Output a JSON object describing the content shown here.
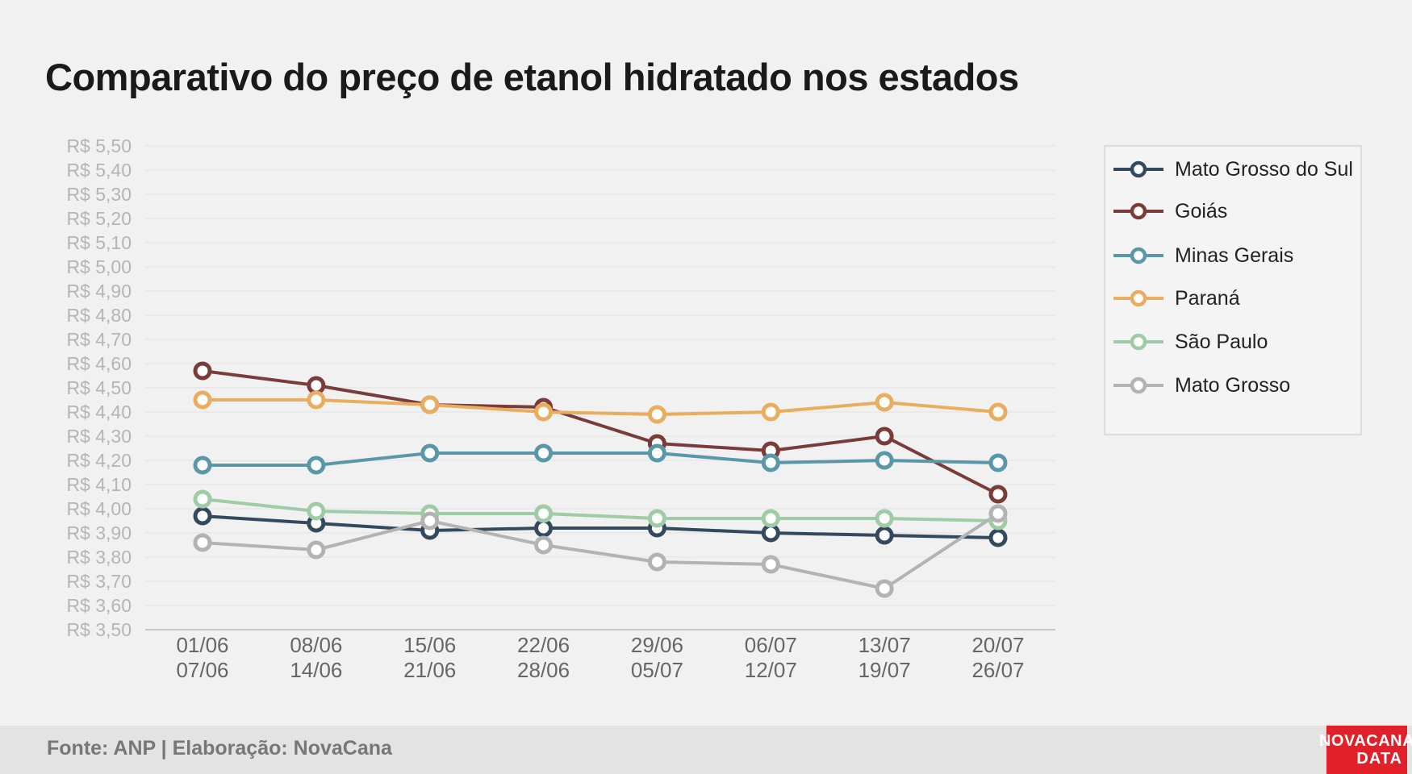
{
  "title": "Comparativo do preço de etanol hidratado nos estados",
  "footer": {
    "source": "Fonte: ANP | Elaboração: NovaCana",
    "logo_line1": "NOVACANA",
    "logo_line2": "DATA"
  },
  "chart_data": {
    "type": "line",
    "title": "Comparativo do preço de etanol hidratado nos estados",
    "xlabel": "",
    "ylabel": "",
    "categories": [
      [
        "01/06",
        "07/06"
      ],
      [
        "08/06",
        "14/06"
      ],
      [
        "15/06",
        "21/06"
      ],
      [
        "22/06",
        "28/06"
      ],
      [
        "29/06",
        "05/07"
      ],
      [
        "06/07",
        "12/07"
      ],
      [
        "13/07",
        "19/07"
      ],
      [
        "20/07",
        "26/07"
      ]
    ],
    "ylim": [
      3.5,
      5.5
    ],
    "ytick_step": 0.1,
    "ytick_labels": [
      "R$ 3,50",
      "R$ 3,60",
      "R$ 3,70",
      "R$ 3,80",
      "R$ 3,90",
      "R$ 4,00",
      "R$ 4,10",
      "R$ 4,20",
      "R$ 4,30",
      "R$ 4,40",
      "R$ 4,50",
      "R$ 4,60",
      "R$ 4,70",
      "R$ 4,80",
      "R$ 4,90",
      "R$ 5,00",
      "R$ 5,10",
      "R$ 5,20",
      "R$ 5,30",
      "R$ 5,40",
      "R$ 5,50"
    ],
    "grid": true,
    "legend_position": "right",
    "series": [
      {
        "name": "Mato Grosso do Sul",
        "color": "#34495e",
        "values": [
          3.97,
          3.94,
          3.91,
          3.92,
          3.92,
          3.9,
          3.89,
          3.88
        ]
      },
      {
        "name": "Goiás",
        "color": "#7a3b3b",
        "values": [
          4.57,
          4.51,
          4.43,
          4.42,
          4.27,
          4.24,
          4.3,
          4.06
        ]
      },
      {
        "name": "Minas Gerais",
        "color": "#5a97a8",
        "values": [
          4.18,
          4.18,
          4.23,
          4.23,
          4.23,
          4.19,
          4.2,
          4.19
        ]
      },
      {
        "name": "Paraná",
        "color": "#e8ad5e",
        "values": [
          4.45,
          4.45,
          4.43,
          4.4,
          4.39,
          4.4,
          4.44,
          4.4
        ]
      },
      {
        "name": "São Paulo",
        "color": "#9fcca6",
        "values": [
          4.04,
          3.99,
          3.98,
          3.98,
          3.96,
          3.96,
          3.96,
          3.95
        ]
      },
      {
        "name": "Mato Grosso",
        "color": "#b3b3b3",
        "values": [
          3.86,
          3.83,
          3.95,
          3.85,
          3.78,
          3.77,
          3.67,
          3.98
        ]
      }
    ]
  }
}
